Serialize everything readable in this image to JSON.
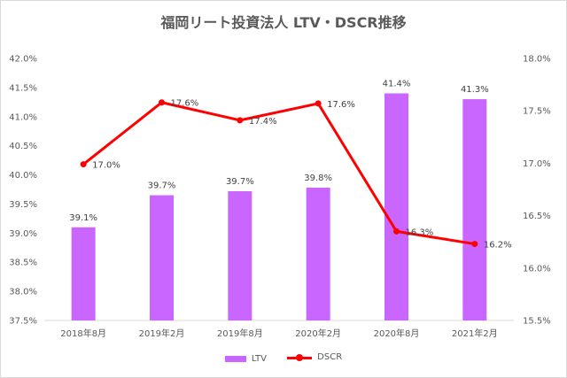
{
  "chart_data": {
    "type": "bar+line",
    "title": "福岡リート投資法人 LTV・DSCR推移",
    "categories": [
      "2018年8月",
      "2019年2月",
      "2019年8月",
      "2020年2月",
      "2020年8月",
      "2021年2月"
    ],
    "series": [
      {
        "name": "LTV",
        "kind": "bar",
        "axis": "left",
        "color": "#c966ff",
        "values": [
          39.1,
          39.65,
          39.72,
          39.78,
          41.4,
          41.3
        ],
        "labels": [
          "39.1%",
          "39.7%",
          "39.7%",
          "39.8%",
          "41.4%",
          "41.3%"
        ]
      },
      {
        "name": "DSCR",
        "kind": "line",
        "axis": "right",
        "color": "#ff0000",
        "values": [
          16.99,
          17.58,
          17.41,
          17.57,
          16.35,
          16.23
        ],
        "labels": [
          "17.0%",
          "17.6%",
          "17.4%",
          "17.6%",
          "16.3%",
          "16.2%"
        ]
      }
    ],
    "y_left": {
      "range": [
        37.5,
        42.0
      ],
      "ticks": [
        "37.5%",
        "38.0%",
        "38.5%",
        "39.0%",
        "39.5%",
        "40.0%",
        "40.5%",
        "41.0%",
        "41.5%",
        "42.0%"
      ]
    },
    "y_right": {
      "range": [
        15.5,
        18.0
      ],
      "ticks": [
        "15.5%",
        "16.0%",
        "16.5%",
        "17.0%",
        "17.5%",
        "18.0%"
      ]
    },
    "grid": false,
    "legend_position": "bottom"
  }
}
